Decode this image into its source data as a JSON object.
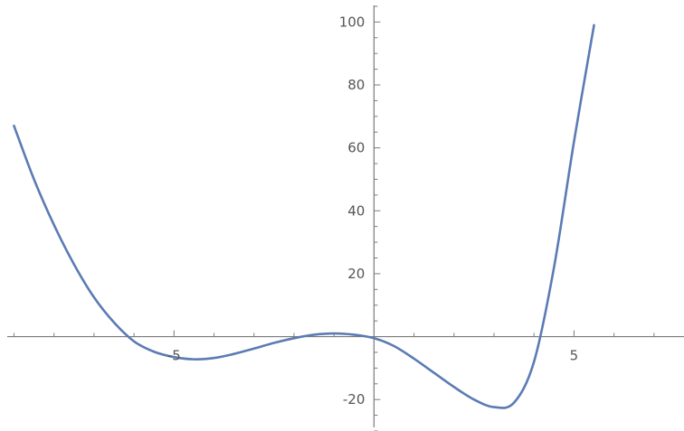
{
  "chart_data": {
    "type": "line",
    "title": "",
    "xlabel": "",
    "ylabel": "",
    "xlim": [
      -9.35,
      7.75
    ],
    "ylim": [
      -30,
      107
    ],
    "x_ticks_labeled": [
      -5,
      5
    ],
    "x_tick_labels": [
      "-5",
      "5"
    ],
    "y_ticks_labeled": [
      -20,
      20,
      40,
      60,
      80,
      100
    ],
    "y_tick_labels": [
      "-20",
      "20",
      "40",
      "60",
      "80",
      "100"
    ],
    "grid": false,
    "legend": "none",
    "colors": {
      "series": "#5b7bb3",
      "axis": "#7a7a7a",
      "label": "#555555"
    },
    "series": [
      {
        "x": [
          -9.0,
          -8.5,
          -8.0,
          -7.5,
          -7.0,
          -6.5,
          -6.0,
          -5.5,
          -5.0,
          -4.5,
          -4.0,
          -3.5,
          -3.0,
          -2.5,
          -2.0,
          -1.5,
          -1.0,
          -0.5,
          0.0,
          0.5,
          1.0,
          1.5,
          2.0,
          2.5,
          3.0,
          3.5,
          4.0,
          4.5,
          5.0,
          5.5
        ],
        "y": [
          67.0,
          50.0,
          35.5,
          23.0,
          12.5,
          4.5,
          -1.5,
          -4.8,
          -6.5,
          -7.2,
          -6.8,
          -5.5,
          -3.8,
          -2.0,
          -0.5,
          0.6,
          1.0,
          0.6,
          -0.5,
          -3.0,
          -7.0,
          -11.5,
          -16.0,
          -20.0,
          -22.4,
          -21.0,
          -8.0,
          22.0,
          62.0,
          99.0
        ]
      }
    ]
  }
}
